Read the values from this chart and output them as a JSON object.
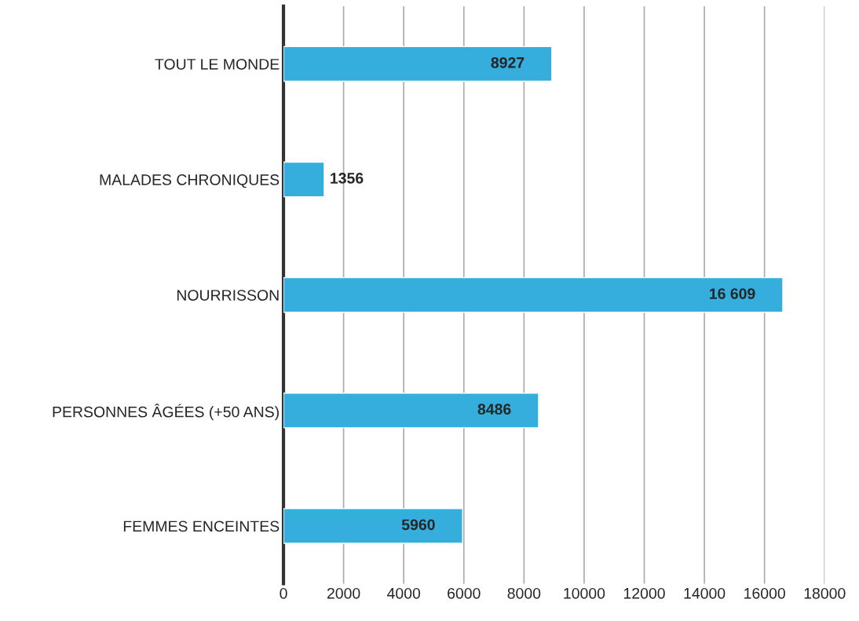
{
  "chart_data": {
    "type": "bar",
    "orientation": "horizontal",
    "categories": [
      "TOUT LE MONDE",
      "MALADES CHRONIQUES",
      "NOURRISSON",
      "PERSONNES ÂGÉES (+50 ANS)",
      "FEMMES ENCEINTES"
    ],
    "values": [
      8927,
      1356,
      16609,
      8486,
      5960
    ],
    "value_labels": [
      "8927",
      "1356",
      "16 609",
      "8486",
      "5960"
    ],
    "color": "#35aedd",
    "xlim": [
      0,
      18000
    ],
    "xticks": [
      0,
      2000,
      4000,
      6000,
      8000,
      10000,
      12000,
      14000,
      16000,
      18000
    ],
    "grid": "x"
  }
}
